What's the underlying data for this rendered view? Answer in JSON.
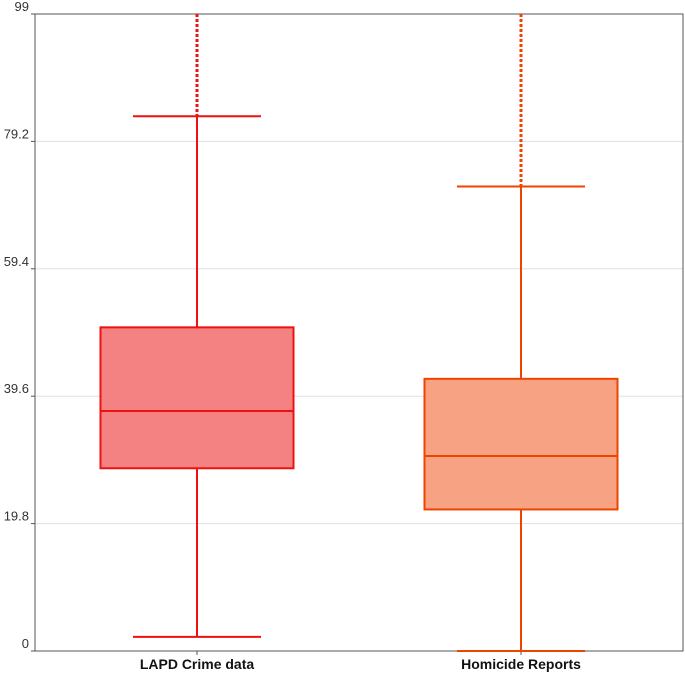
{
  "chart_data": {
    "type": "boxplot",
    "title": "",
    "xlabel": "",
    "ylabel": "",
    "ylim": [
      0,
      99
    ],
    "yticks": [
      0,
      19.8,
      39.6,
      59.4,
      79.2,
      99
    ],
    "ytick_labels": [
      "0",
      "19.8",
      "39.6",
      "59.4",
      "79.2",
      "99"
    ],
    "grid": true,
    "categories": [
      "LAPD Crime data",
      "Homicide Reports"
    ],
    "series": [
      {
        "category": "LAPD Crime data",
        "whisker_low": 2.2,
        "q1": 28.4,
        "median": 37.3,
        "q3": 50.3,
        "whisker_high": 83.1,
        "extends_beyond_axis": true,
        "fill": "#f48282",
        "stroke": "#ee1111"
      },
      {
        "category": "Homicide Reports",
        "whisker_low": 0,
        "q1": 22.0,
        "median": 30.3,
        "q3": 42.3,
        "whisker_high": 72.2,
        "extends_beyond_axis": true,
        "fill": "#f6a283",
        "stroke": "#ee4400"
      }
    ],
    "colors": {
      "grid": "#dde0ec",
      "axis": "#555555"
    }
  }
}
